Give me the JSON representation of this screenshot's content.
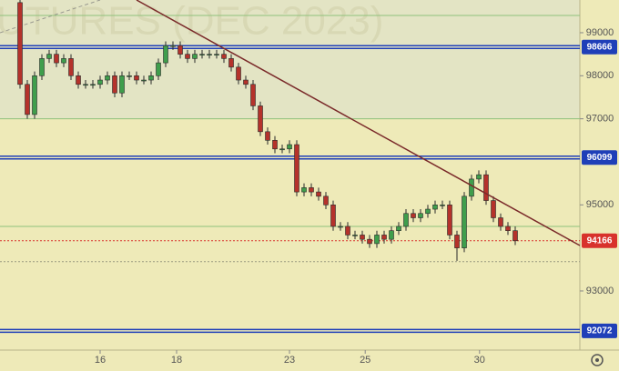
{
  "chart_data": {
    "type": "candlestick",
    "watermark": "UTURES (DEC 2023)",
    "open": [
      99700,
      97800,
      97100,
      98000,
      98400,
      98500,
      98300,
      98400,
      98000,
      97800,
      97800,
      97800,
      97900,
      98000,
      97600,
      98000,
      98000,
      97900,
      97900,
      98000,
      98300,
      98700,
      98700,
      98500,
      98400,
      98500,
      98500,
      98500,
      98500,
      98400,
      98200,
      97900,
      97800,
      97300,
      96700,
      96500,
      96300,
      96300,
      96400,
      95300,
      95400,
      95300,
      95200,
      95000,
      94500,
      94500,
      94300,
      94300,
      94200,
      94100,
      94300,
      94200,
      94400,
      94500,
      94800,
      94700,
      94800,
      94900,
      95000,
      95000,
      94300,
      94000,
      95200,
      95600,
      95700,
      95100,
      94700,
      94500,
      94400
    ],
    "high": [
      99800,
      97900,
      98100,
      98500,
      98600,
      98600,
      98500,
      98500,
      98100,
      97900,
      97900,
      98000,
      98100,
      98100,
      98100,
      98100,
      98100,
      98000,
      98100,
      98400,
      98800,
      98800,
      98800,
      98600,
      98600,
      98600,
      98600,
      98600,
      98600,
      98500,
      98300,
      98000,
      97900,
      97400,
      96800,
      96600,
      96400,
      96500,
      96500,
      95500,
      95500,
      95400,
      95300,
      95100,
      94600,
      94600,
      94400,
      94400,
      94300,
      94400,
      94400,
      94500,
      94600,
      94900,
      94900,
      94900,
      95000,
      95100,
      95100,
      95100,
      94400,
      95300,
      95700,
      95800,
      95800,
      95200,
      94800,
      94600,
      94500
    ],
    "low": [
      97700,
      97000,
      97000,
      97900,
      98300,
      98200,
      98200,
      97900,
      97700,
      97700,
      97700,
      97700,
      97800,
      97500,
      97500,
      97900,
      97800,
      97800,
      97800,
      97900,
      98200,
      98600,
      98400,
      98300,
      98300,
      98400,
      98400,
      98400,
      98300,
      98100,
      97800,
      97700,
      97200,
      96600,
      96400,
      96200,
      96200,
      96200,
      95200,
      95200,
      95200,
      95100,
      94900,
      94400,
      94400,
      94200,
      94200,
      94100,
      94000,
      94000,
      94100,
      94100,
      94300,
      94400,
      94600,
      94600,
      94700,
      94800,
      94900,
      94200,
      93700,
      93900,
      95100,
      95500,
      95000,
      94600,
      94400,
      94300,
      94066
    ],
    "close": [
      97800,
      97100,
      98000,
      98400,
      98500,
      98300,
      98400,
      98000,
      97800,
      97800,
      97800,
      97900,
      98000,
      97600,
      98000,
      98000,
      97900,
      97900,
      98000,
      98300,
      98700,
      98700,
      98500,
      98400,
      98500,
      98500,
      98500,
      98500,
      98400,
      98200,
      97900,
      97800,
      97300,
      96700,
      96500,
      96300,
      96300,
      96400,
      95300,
      95400,
      95300,
      95200,
      95000,
      94500,
      94500,
      94300,
      94300,
      94200,
      94100,
      94300,
      94200,
      94400,
      94500,
      94800,
      94700,
      94800,
      94900,
      95000,
      95000,
      94300,
      94000,
      95200,
      95600,
      95700,
      95100,
      94700,
      94500,
      94400,
      94166
    ],
    "up_color": "#3f9e4c",
    "down_color": "#b5322b",
    "xlim": [
      -2.75,
      76.875
    ],
    "xticks": [
      {
        "value": 11,
        "label": "16"
      },
      {
        "value": 21.5,
        "label": "18"
      },
      {
        "value": 37,
        "label": "23"
      },
      {
        "value": 47.4,
        "label": "25"
      },
      {
        "value": 63.1,
        "label": "30"
      }
    ],
    "ylim": [
      91626,
      99760
    ],
    "yticks": [
      99000,
      98000,
      97000,
      95000,
      93000
    ],
    "levels": {
      "color": "#1f3fb8",
      "values": [
        98666,
        96099,
        92072
      ]
    },
    "guide_lines": {
      "color": "#8fc27c",
      "values": [
        99400,
        97000,
        94500
      ]
    },
    "dotted_line": {
      "color": "#9a9a80",
      "value": 93680
    },
    "last_price": {
      "color": "#d8322c",
      "value": 94166
    },
    "trend_line": {
      "color": "#7a2a2a",
      "x": [
        16,
        76.875
      ],
      "y": [
        99760,
        94056
      ]
    }
  }
}
